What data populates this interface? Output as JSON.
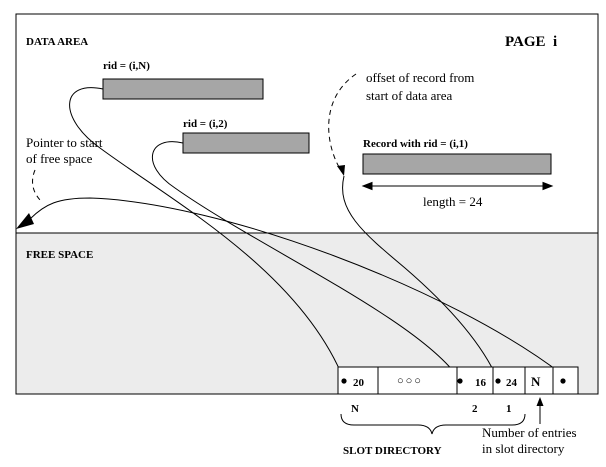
{
  "page": {
    "data_area_label": "DATA AREA",
    "page_label": "PAGE  i",
    "free_space_label": "FREE SPACE",
    "pointer_label_line1": "Pointer to start",
    "pointer_label_line2": "of free space"
  },
  "records": [
    {
      "rid_label": "rid = (i,N)"
    },
    {
      "rid_label": "rid = (i,2)"
    },
    {
      "rid_label": "Record with rid = (i,1)"
    }
  ],
  "annotations": {
    "offset_line1": "offset of record from",
    "offset_line2": "start of data area",
    "length_label": "length = 24"
  },
  "slot_directory": {
    "label": "SLOT DIRECTORY",
    "entries": [
      {
        "offset": "20",
        "index": "N"
      },
      {
        "offset": "16",
        "index": "2"
      },
      {
        "offset": "24",
        "index": "1"
      }
    ],
    "ellipsis": "○○○",
    "count_cell": "N",
    "count_caption_line1": "Number of entries",
    "count_caption_line2": "in slot directory"
  },
  "colors": {
    "record_fill": "#a6a6a6",
    "free_space_fill": "#ececec",
    "stroke": "#000000"
  }
}
